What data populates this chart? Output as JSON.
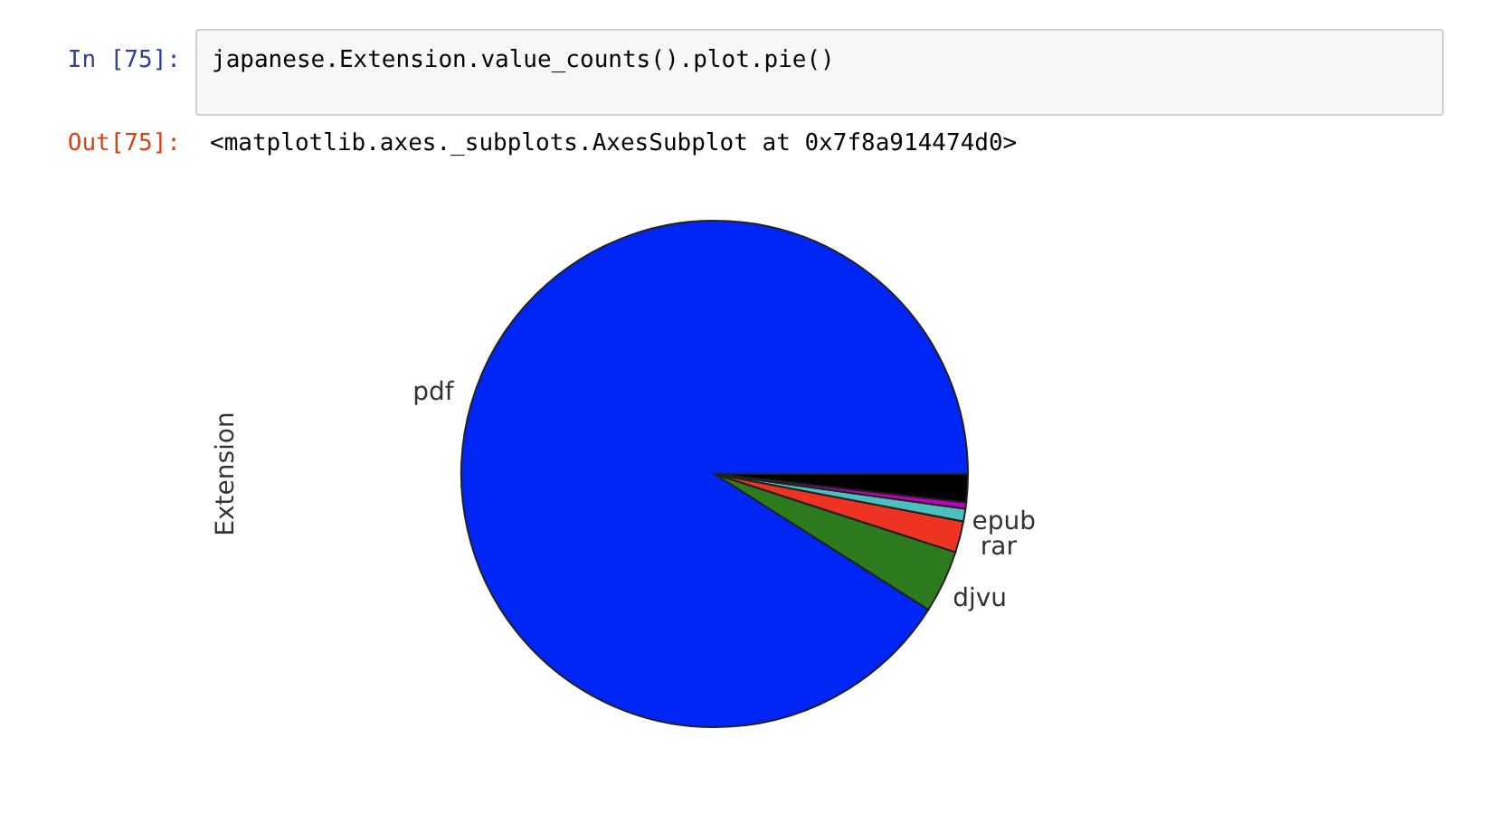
{
  "chart_data": {
    "type": "pie",
    "ylabel": "Extension",
    "categories": [
      "pdf",
      "djvu",
      "rar",
      "epub",
      null,
      null
    ],
    "values": [
      91,
      4,
      2,
      0.8,
      0.4,
      1.8
    ],
    "colors": [
      "#0026f5",
      "#2e7a1e",
      "#ee3322",
      "#4dbfbf",
      "#bf00bf",
      "#000000"
    ],
    "legend": false,
    "annotations": [
      "In [75]:",
      "japanese.Extension.value_counts().plot.pie()",
      "Out[75]:",
      "<matplotlib.axes._subplots.AxesSubplot at 0x7f8a914474d0>"
    ]
  }
}
